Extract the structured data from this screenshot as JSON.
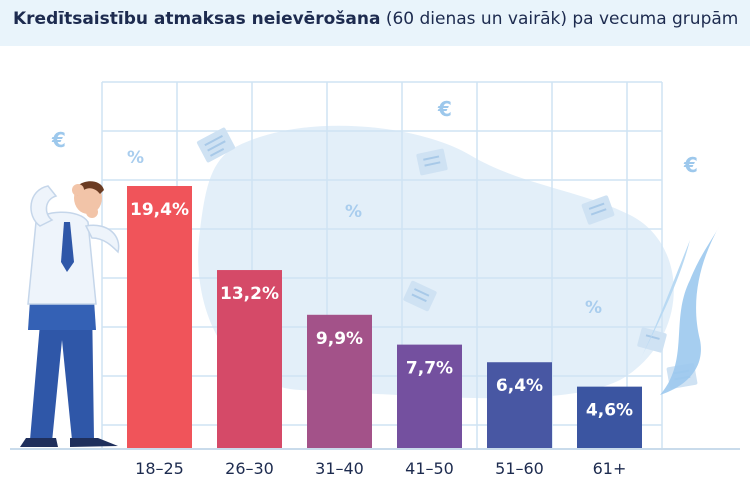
{
  "title": {
    "bold": "Kredītsaistību atmaksas neievērošana",
    "rest": " (60 dienas un vairāk) pa vecuma grupām"
  },
  "chart_data": {
    "type": "bar",
    "categories": [
      "18–25",
      "26–30",
      "31–40",
      "41–50",
      "51–60",
      "61+"
    ],
    "values": [
      19.4,
      13.2,
      9.9,
      7.7,
      6.4,
      4.6
    ],
    "labels": [
      "19,4%",
      "13,2%",
      "9,9%",
      "7,7%",
      "6,4%",
      "4,6%"
    ],
    "colors": [
      "#f0545a",
      "#d54a68",
      "#a35289",
      "#74509f",
      "#4857a3",
      "#3b55a1"
    ],
    "ylim": [
      0,
      24
    ],
    "grid": true
  },
  "decor": {
    "icons": [
      "euro-icon",
      "percent-icon",
      "document-icon"
    ],
    "figure": "stressed-businessman"
  }
}
